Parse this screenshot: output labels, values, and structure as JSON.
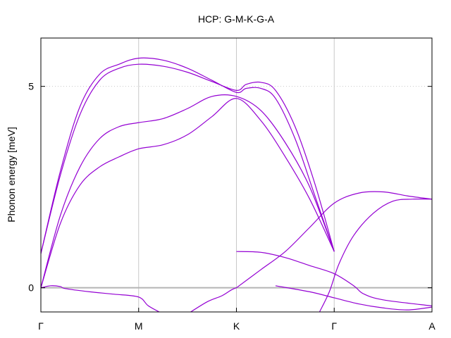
{
  "chart_data": {
    "type": "line",
    "title": "HCP: G-M-K-G-A",
    "xlabel": "",
    "ylabel": "Phonon energy [meV]",
    "ylim": [
      -0.6,
      6.2
    ],
    "yticks": [
      {
        "value": 0,
        "label": "0"
      },
      {
        "value": 5,
        "label": "5"
      }
    ],
    "xlim": [
      0,
      4
    ],
    "xticks": [
      {
        "value": 0,
        "label": "Γ"
      },
      {
        "value": 1,
        "label": "M"
      },
      {
        "value": 2,
        "label": "K"
      },
      {
        "value": 3,
        "label": "Γ"
      },
      {
        "value": 4,
        "label": "A"
      }
    ],
    "grid": {
      "vertical_at_ticks": true,
      "horizontal_dotted_at": [
        5
      ],
      "zero_line": true
    },
    "line_color": "#9400d3",
    "grid_color": "#c8c8c8",
    "series": [
      {
        "points": [
          [
            0,
            0.0
          ],
          [
            0.1,
            0.05
          ],
          [
            0.2,
            0.03
          ],
          [
            0.25,
            -0.02
          ],
          [
            0.5,
            -0.1
          ],
          [
            0.75,
            -0.16
          ],
          [
            1.0,
            -0.23
          ],
          [
            1.1,
            -0.45
          ],
          [
            1.25,
            -0.65
          ]
        ]
      },
      {
        "points": [
          [
            0,
            0.0
          ],
          [
            0.2,
            1.6
          ],
          [
            0.4,
            2.55
          ],
          [
            0.6,
            3.0
          ],
          [
            0.8,
            3.25
          ],
          [
            1.0,
            3.45
          ],
          [
            1.25,
            3.55
          ],
          [
            1.5,
            3.8
          ],
          [
            1.75,
            4.25
          ],
          [
            2.0,
            4.7
          ],
          [
            2.25,
            4.15
          ],
          [
            2.5,
            3.25
          ],
          [
            2.75,
            2.2
          ],
          [
            3.0,
            0.9
          ]
        ]
      },
      {
        "points": [
          [
            0,
            0.0
          ],
          [
            0.2,
            1.8
          ],
          [
            0.4,
            3.0
          ],
          [
            0.6,
            3.7
          ],
          [
            0.8,
            4.0
          ],
          [
            1.0,
            4.1
          ],
          [
            1.25,
            4.2
          ],
          [
            1.5,
            4.45
          ],
          [
            1.75,
            4.75
          ],
          [
            2.0,
            4.75
          ],
          [
            2.25,
            4.4
          ],
          [
            2.5,
            3.6
          ],
          [
            2.75,
            2.5
          ],
          [
            3.0,
            0.9
          ]
        ]
      },
      {
        "points": [
          [
            0,
            0.85
          ],
          [
            0.2,
            2.8
          ],
          [
            0.4,
            4.3
          ],
          [
            0.6,
            5.15
          ],
          [
            0.8,
            5.45
          ],
          [
            1.0,
            5.55
          ],
          [
            1.25,
            5.5
          ],
          [
            1.5,
            5.35
          ],
          [
            1.75,
            5.12
          ],
          [
            2.0,
            4.9
          ],
          [
            2.1,
            5.05
          ],
          [
            2.25,
            5.1
          ],
          [
            2.4,
            4.9
          ],
          [
            2.6,
            4.0
          ],
          [
            2.8,
            2.6
          ],
          [
            3.0,
            0.9
          ]
        ]
      },
      {
        "points": [
          [
            0,
            0.85
          ],
          [
            0.2,
            2.9
          ],
          [
            0.4,
            4.5
          ],
          [
            0.6,
            5.3
          ],
          [
            0.8,
            5.55
          ],
          [
            1.0,
            5.7
          ],
          [
            1.25,
            5.65
          ],
          [
            1.5,
            5.45
          ],
          [
            1.75,
            5.15
          ],
          [
            2.0,
            4.85
          ],
          [
            2.1,
            4.95
          ],
          [
            2.25,
            4.95
          ],
          [
            2.4,
            4.7
          ],
          [
            2.6,
            3.7
          ],
          [
            2.8,
            2.3
          ],
          [
            3.0,
            0.9
          ]
        ]
      },
      {
        "points": [
          [
            1.5,
            -0.65
          ],
          [
            1.7,
            -0.35
          ],
          [
            1.85,
            -0.2
          ],
          [
            1.95,
            -0.05
          ],
          [
            2.0,
            0.0
          ]
        ]
      },
      {
        "points": [
          [
            2.0,
            0.0
          ],
          [
            2.25,
            0.45
          ],
          [
            2.5,
            0.9
          ],
          [
            2.75,
            1.5
          ],
          [
            3.0,
            2.1
          ],
          [
            3.25,
            2.35
          ],
          [
            3.5,
            2.38
          ],
          [
            3.75,
            2.28
          ],
          [
            4.0,
            2.2
          ]
        ]
      },
      {
        "points": [
          [
            2.4,
            0.05
          ],
          [
            2.75,
            -0.1
          ],
          [
            3.0,
            -0.25
          ],
          [
            3.25,
            -0.4
          ],
          [
            3.5,
            -0.5
          ],
          [
            3.75,
            -0.55
          ],
          [
            4.0,
            -0.48
          ]
        ]
      },
      {
        "points": [
          [
            2.0,
            0.9
          ],
          [
            2.25,
            0.88
          ],
          [
            2.5,
            0.75
          ],
          [
            2.75,
            0.55
          ],
          [
            3.0,
            0.35
          ],
          [
            3.2,
            0.05
          ],
          [
            3.3,
            -0.15
          ],
          [
            3.5,
            -0.3
          ],
          [
            4.0,
            -0.45
          ]
        ]
      },
      {
        "points": [
          [
            2.85,
            -0.6
          ],
          [
            2.95,
            -0.1
          ],
          [
            3.05,
            0.6
          ],
          [
            3.2,
            1.3
          ],
          [
            3.4,
            1.85
          ],
          [
            3.6,
            2.15
          ],
          [
            3.8,
            2.2
          ],
          [
            4.0,
            2.2
          ]
        ]
      }
    ]
  }
}
